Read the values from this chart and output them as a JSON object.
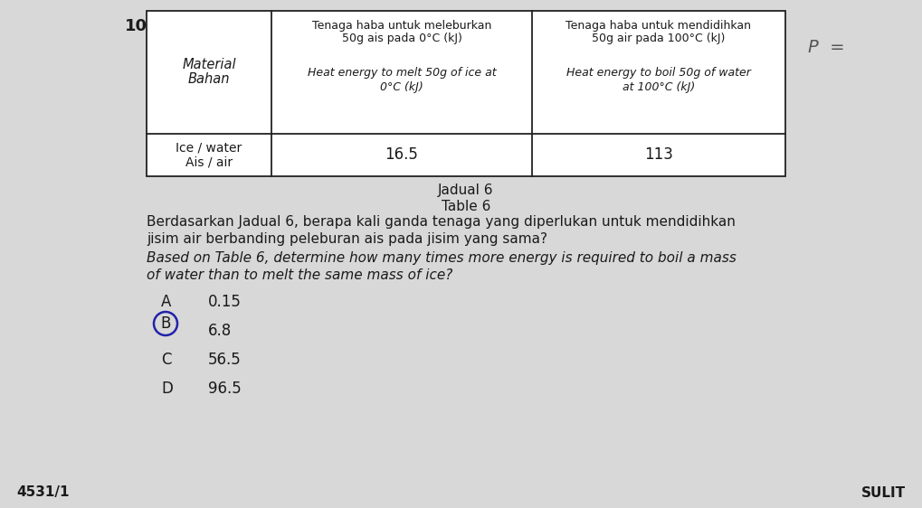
{
  "question_number": "10",
  "table_caption_malay": "Jadual 6",
  "table_caption_english": "Table 6",
  "col_header_1_line1": "Tenaga haba untuk meleburkan",
  "col_header_1_line2": "50g ais pada 0°C (kJ)",
  "col_header_1_line3": "Heat energy to melt 50g of ice at",
  "col_header_1_line4": "0°C (kJ)",
  "col_header_2_line1": "Tenaga haba untuk mendidihkan",
  "col_header_2_line2": "50g air pada 100°C (kJ)",
  "col_header_2_line3": "Heat energy to boil 50g of water",
  "col_header_2_line4": "at 100°C (kJ)",
  "row_label_line1": "Ice / water",
  "row_label_line2": "Ais / air",
  "value_1": "16.5",
  "value_2": "113",
  "material_label_malay": "Material",
  "material_label_english": "Bahan",
  "question_text_malay_1": "Berdasarkan Jadual 6, berapa kali ganda tenaga yang diperlukan untuk mendidihkan",
  "question_text_malay_2": "jisim air berbanding peleburan ais pada jisim yang sama?",
  "question_text_eng_1": "Based on Table 6, determine how many times more energy is required to boil a mass",
  "question_text_eng_2": "of water than to melt the same mass of ice?",
  "options": [
    {
      "label": "A",
      "value": "0.15",
      "circled": false
    },
    {
      "label": "B",
      "value": "6.8",
      "circled": true
    },
    {
      "label": "C",
      "value": "56.5",
      "circled": false
    },
    {
      "label": "D",
      "value": "96.5",
      "circled": false
    }
  ],
  "footer_left": "4531/1",
  "footer_right": "SULIT",
  "bg_color": "#d8d8d8",
  "text_color": "#1a1a1a",
  "circle_color": "#2222aa",
  "table_border_color": "#222222",
  "table_bg": "#ffffff"
}
